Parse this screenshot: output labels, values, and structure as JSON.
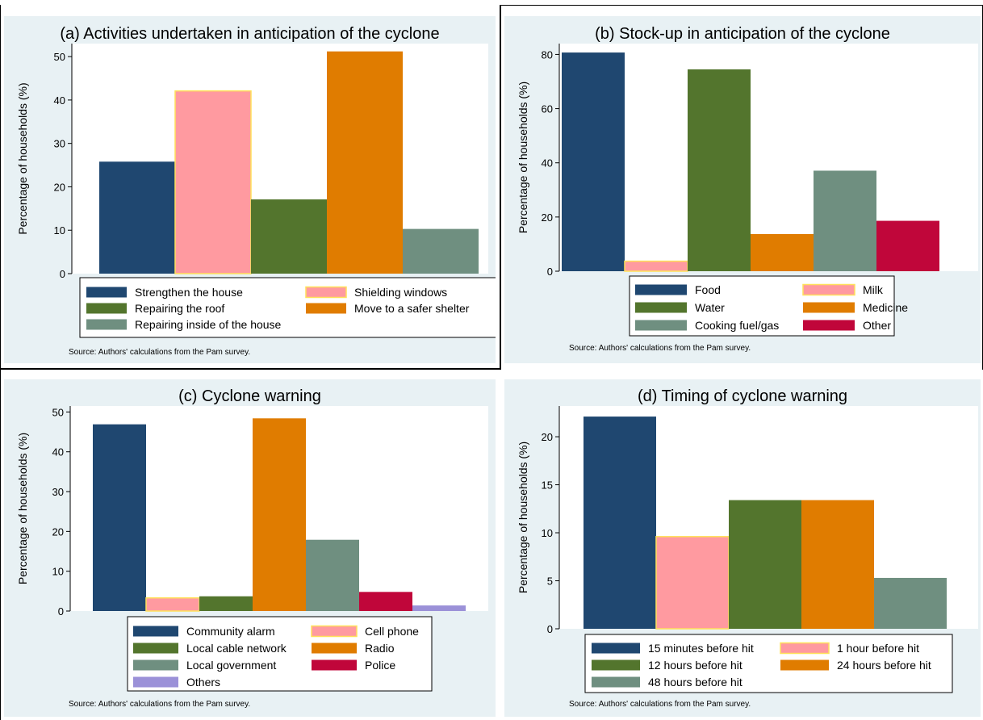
{
  "figure": {
    "colors": {
      "navy": "#1f4770",
      "pink": "#ff9aa0",
      "pink_outline": "#ffe15a",
      "green": "#53752d",
      "orange": "#e07c00",
      "gray": "#6f8f80",
      "crimson": "#c0063a",
      "lavender": "#9b91d8",
      "panel_bg": "#e8f1f4"
    }
  },
  "chart_data": [
    {
      "id": "a",
      "type": "bar",
      "title": "(a) Activities undertaken in anticipation of the cyclone",
      "ylabel": "Percentage of households (%)",
      "ylim": [
        0,
        53
      ],
      "yticks": [
        "0",
        "10",
        "20",
        "30",
        "40",
        "50"
      ],
      "ytick_values": [
        0,
        10,
        20,
        30,
        40,
        50
      ],
      "grid": false,
      "legend_position": "bottom",
      "legend_columns": 2,
      "series": [
        {
          "name": "Strengthen the house",
          "value": 25.8,
          "color": "#1f4770"
        },
        {
          "name": "Shielding windows",
          "value": 42.1,
          "color": "#ff9aa0"
        },
        {
          "name": "Repairing the roof",
          "value": 17.1,
          "color": "#53752d"
        },
        {
          "name": "Move to a safer shelter",
          "value": 51.2,
          "color": "#e07c00"
        },
        {
          "name": "Repairing inside of the house",
          "value": 10.3,
          "color": "#6f8f80"
        }
      ],
      "note": "Source: Authors' calculations from the Pam survey."
    },
    {
      "id": "b",
      "type": "bar",
      "title": "(b) Stock-up in anticipation of the cyclone",
      "ylabel": "Percentage of households (%)",
      "ylim": [
        0,
        84
      ],
      "yticks": [
        "0",
        "20",
        "40",
        "60",
        "80"
      ],
      "ytick_values": [
        0,
        20,
        40,
        60,
        80
      ],
      "grid": false,
      "legend_position": "bottom",
      "legend_columns": 2,
      "series": [
        {
          "name": "Food",
          "value": 80.7,
          "color": "#1f4770"
        },
        {
          "name": "Milk",
          "value": 3.7,
          "color": "#ff9aa0"
        },
        {
          "name": "Water",
          "value": 74.5,
          "color": "#53752d"
        },
        {
          "name": "Medicine",
          "value": 13.7,
          "color": "#e07c00"
        },
        {
          "name": "Cooking fuel/gas",
          "value": 37.1,
          "color": "#6f8f80"
        },
        {
          "name": "Other",
          "value": 18.6,
          "color": "#c0063a"
        }
      ],
      "note": "Source: Authors' calculations from the Pam survey."
    },
    {
      "id": "c",
      "type": "bar",
      "title": "(c) Cyclone warning",
      "ylabel": "Percentage of households (%)",
      "ylim": [
        0,
        51.5
      ],
      "yticks": [
        "0",
        "10",
        "20",
        "30",
        "40",
        "50"
      ],
      "ytick_values": [
        0,
        10,
        20,
        30,
        40,
        50
      ],
      "grid": false,
      "legend_position": "bottom",
      "legend_columns": 2,
      "series": [
        {
          "name": "Community alarm",
          "value": 46.9,
          "color": "#1f4770"
        },
        {
          "name": "Cell phone",
          "value": 3.3,
          "color": "#ff9aa0"
        },
        {
          "name": "Local cable network",
          "value": 3.7,
          "color": "#53752d"
        },
        {
          "name": "Radio",
          "value": 48.4,
          "color": "#e07c00"
        },
        {
          "name": "Local government",
          "value": 17.9,
          "color": "#6f8f80"
        },
        {
          "name": "Police",
          "value": 4.8,
          "color": "#c0063a"
        },
        {
          "name": "Others",
          "value": 1.4,
          "color": "#9b91d8"
        }
      ],
      "note": "Source: Authors' calculations from the Pam survey."
    },
    {
      "id": "d",
      "type": "bar",
      "title": "(d) Timing of cyclone warning",
      "ylabel": "Percentage of households (%)",
      "ylim": [
        0,
        23.2
      ],
      "yticks": [
        "0",
        "5",
        "10",
        "15",
        "20"
      ],
      "ytick_values": [
        0,
        5,
        10,
        15,
        20
      ],
      "grid": false,
      "legend_position": "bottom",
      "legend_columns": 2,
      "series": [
        {
          "name": "15 minutes before hit",
          "value": 22.1,
          "color": "#1f4770"
        },
        {
          "name": "1 hour before hit",
          "value": 9.6,
          "color": "#ff9aa0"
        },
        {
          "name": "12 hours before hit",
          "value": 13.4,
          "color": "#53752d"
        },
        {
          "name": "24 hours before hit",
          "value": 13.4,
          "color": "#e07c00"
        },
        {
          "name": "48 hours before hit",
          "value": 5.3,
          "color": "#6f8f80"
        }
      ],
      "note": "Source: Authors' calculations from the Pam survey."
    }
  ]
}
